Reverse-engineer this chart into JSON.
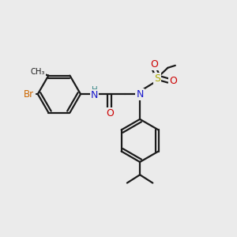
{
  "bg_color": "#ebebeb",
  "bond_color": "#1a1a1a",
  "bond_lw": 1.6,
  "atom_colors": {
    "N": "#1a1acc",
    "O": "#cc0000",
    "S": "#aaaa00",
    "Br": "#cc6600",
    "H": "#3a8888",
    "C": "#1a1a1a"
  }
}
